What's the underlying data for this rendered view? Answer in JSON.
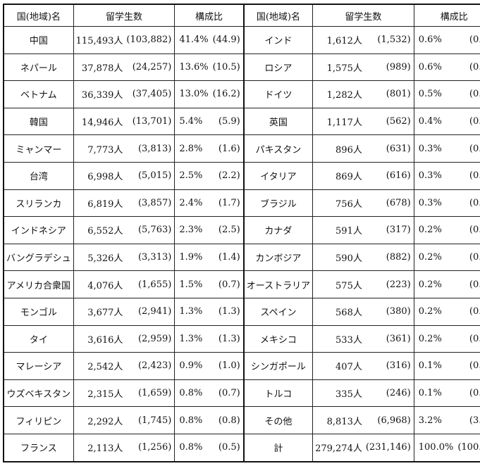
{
  "headers": {
    "country": "国(地域)名",
    "students": "留学生数",
    "ratio": "構成比"
  },
  "left": [
    {
      "country": "中国",
      "count": "115,493人",
      "prev": "(103,882)",
      "pct": "41.4%",
      "pprev": "(44.9)"
    },
    {
      "country": "ネパール",
      "count": "37,878人",
      "prev": "(24,257)",
      "pct": "13.6%",
      "pprev": "(10.5)"
    },
    {
      "country": "ベトナム",
      "count": "36,339人",
      "prev": "(37,405)",
      "pct": "13.0%",
      "pprev": "(16.2)"
    },
    {
      "country": "韓国",
      "count": "14,946人",
      "prev": "(13,701)",
      "pct": "5.4%",
      "pprev": "(5.9)"
    },
    {
      "country": "ミャンマー",
      "count": "7,773人",
      "prev": "(3,813)",
      "pct": "2.8%",
      "pprev": "(1.6)"
    },
    {
      "country": "台湾",
      "count": "6,998人",
      "prev": "(5,015)",
      "pct": "2.5%",
      "pprev": "(2.2)"
    },
    {
      "country": "スリランカ",
      "count": "6,819人",
      "prev": "(3,857)",
      "pct": "2.4%",
      "pprev": "(1.7)"
    },
    {
      "country": "インドネシア",
      "count": "6,552人",
      "prev": "(5,763)",
      "pct": "2.3%",
      "pprev": "(2.5)"
    },
    {
      "country": "バングラデシュ",
      "count": "5,326人",
      "prev": "(3,313)",
      "pct": "1.9%",
      "pprev": "(1.4)"
    },
    {
      "country": "アメリカ合衆国",
      "count": "4,076人",
      "prev": "(1,655)",
      "pct": "1.5%",
      "pprev": "(0.7)"
    },
    {
      "country": "モンゴル",
      "count": "3,677人",
      "prev": "(2,941)",
      "pct": "1.3%",
      "pprev": "(1.3)"
    },
    {
      "country": "タイ",
      "count": "3,616人",
      "prev": "(2,959)",
      "pct": "1.3%",
      "pprev": "(1.3)"
    },
    {
      "country": "マレーシア",
      "count": "2,542人",
      "prev": "(2,423)",
      "pct": "0.9%",
      "pprev": "(1.0)"
    },
    {
      "country": "ウズベキスタン",
      "count": "2,315人",
      "prev": "(1,659)",
      "pct": "0.8%",
      "pprev": "(0.7)"
    },
    {
      "country": "フィリピン",
      "count": "2,292人",
      "prev": "(1,745)",
      "pct": "0.8%",
      "pprev": "(0.8)"
    },
    {
      "country": "フランス",
      "count": "2,113人",
      "prev": "(1,256)",
      "pct": "0.8%",
      "pprev": "(0.5)"
    }
  ],
  "right": [
    {
      "country": "インド",
      "count": "1,612人",
      "prev": "(1,532)",
      "pct": "0.6%",
      "pprev": "(0.7)"
    },
    {
      "country": "ロシア",
      "count": "1,575人",
      "prev": "(989)",
      "pct": "0.6%",
      "pprev": "(0.4)"
    },
    {
      "country": "ドイツ",
      "count": "1,282人",
      "prev": "(801)",
      "pct": "0.5%",
      "pprev": "(0.3)"
    },
    {
      "country": "英国",
      "count": "1,117人",
      "prev": "(562)",
      "pct": "0.4%",
      "pprev": "(0.2)"
    },
    {
      "country": "パキスタン",
      "count": "896人",
      "prev": "(631)",
      "pct": "0.3%",
      "pprev": "(0.3)"
    },
    {
      "country": "イタリア",
      "count": "869人",
      "prev": "(616)",
      "pct": "0.3%",
      "pprev": "(0.3)"
    },
    {
      "country": "ブラジル",
      "count": "756人",
      "prev": "(678)",
      "pct": "0.3%",
      "pprev": "(0.3)"
    },
    {
      "country": "カナダ",
      "count": "591人",
      "prev": "(317)",
      "pct": "0.2%",
      "pprev": "(0.1)"
    },
    {
      "country": "カンボジア",
      "count": "590人",
      "prev": "(882)",
      "pct": "0.2%",
      "pprev": "(0.4)"
    },
    {
      "country": "オーストラリア",
      "count": "575人",
      "prev": "(223)",
      "pct": "0.2%",
      "pprev": "(0.1)"
    },
    {
      "country": "スペイン",
      "count": "568人",
      "prev": "(380)",
      "pct": "0.2%",
      "pprev": "(0.2)"
    },
    {
      "country": "メキシコ",
      "count": "533人",
      "prev": "(361)",
      "pct": "0.2%",
      "pprev": "(0.2)"
    },
    {
      "country": "シンガポール",
      "count": "407人",
      "prev": "(316)",
      "pct": "0.1%",
      "pprev": "(0.1)"
    },
    {
      "country": "トルコ",
      "count": "335人",
      "prev": "(246)",
      "pct": "0.1%",
      "pprev": "(0.1)"
    },
    {
      "country": "その他",
      "count": "8,813人",
      "prev": "(6,968)",
      "pct": "3.2%",
      "pprev": "(3.0)"
    },
    {
      "country": "計",
      "count": "279,274人",
      "prev": "(231,146)",
      "pct": "100.0%",
      "pprev": "(100.0)"
    }
  ]
}
